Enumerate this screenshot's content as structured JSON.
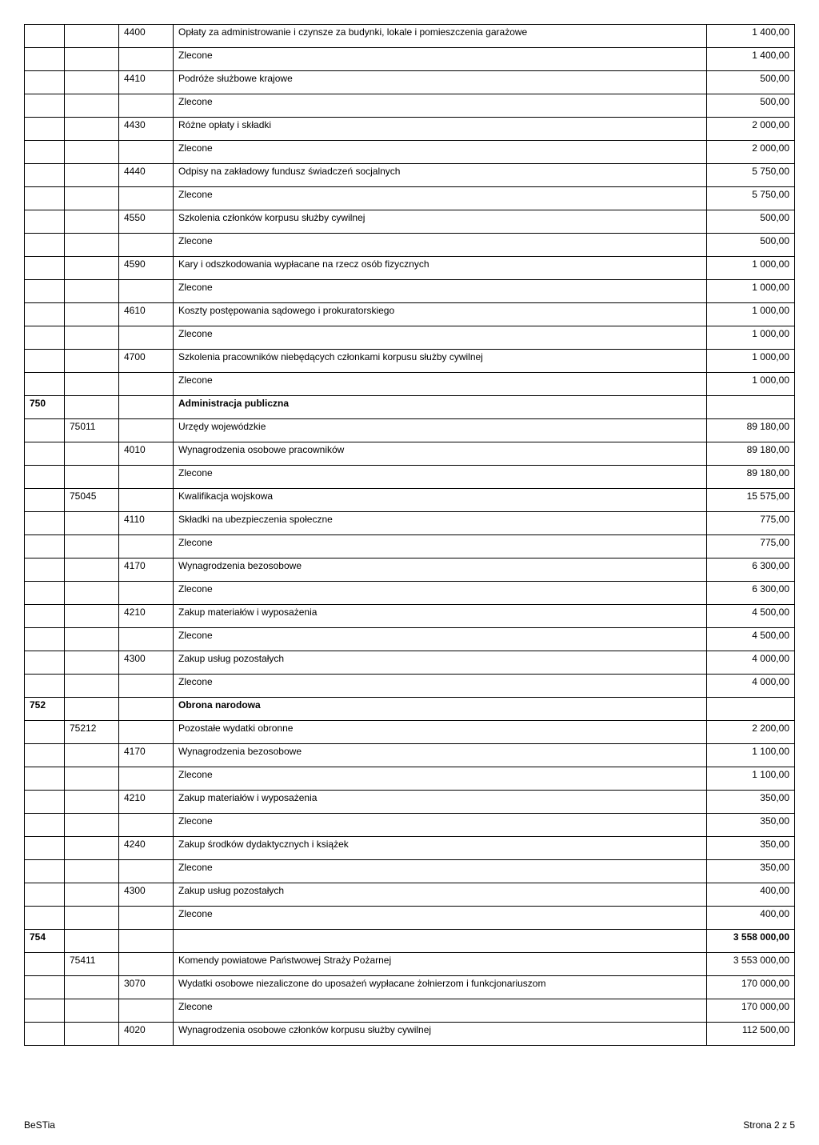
{
  "footer": {
    "left": "BeSTia",
    "right": "Strona 2 z 5"
  },
  "rows": [
    {
      "c2": "4400",
      "c3": "Opłaty za administrowanie i czynsze za budynki, lokale i pomieszczenia garażowe",
      "c4": "1 400,00"
    },
    {
      "c3": "Zlecone",
      "c4": "1 400,00"
    },
    {
      "c2": "4410",
      "c3": "Podróże służbowe krajowe",
      "c4": "500,00"
    },
    {
      "c3": "Zlecone",
      "c4": "500,00"
    },
    {
      "c2": "4430",
      "c3": "Różne opłaty i składki",
      "c4": "2 000,00"
    },
    {
      "c3": "Zlecone",
      "c4": "2 000,00"
    },
    {
      "c2": "4440",
      "c3": "Odpisy na zakładowy fundusz świadczeń socjalnych",
      "c4": "5 750,00"
    },
    {
      "c3": "Zlecone",
      "c4": "5 750,00"
    },
    {
      "c2": "4550",
      "c3": "Szkolenia członków korpusu służby cywilnej",
      "c4": "500,00"
    },
    {
      "c3": "Zlecone",
      "c4": "500,00"
    },
    {
      "c2": "4590",
      "c3": "Kary i odszkodowania wypłacane na rzecz osób fizycznych",
      "c4": "1 000,00"
    },
    {
      "c3": "Zlecone",
      "c4": "1 000,00"
    },
    {
      "c2": "4610",
      "c3": "Koszty postępowania sądowego i prokuratorskiego",
      "c4": "1 000,00"
    },
    {
      "c3": "Zlecone",
      "c4": "1 000,00"
    },
    {
      "c2": "4700",
      "c3": "Szkolenia pracowników niebędących członkami korpusu służby cywilnej",
      "c4": "1 000,00"
    },
    {
      "c3": "Zlecone",
      "c4": "1 000,00"
    },
    {
      "c0": "750",
      "c3": "Administracja publiczna",
      "bold": true
    },
    {
      "c1": "75011",
      "c3": "Urzędy wojewódzkie",
      "c4": "89 180,00"
    },
    {
      "c2": "4010",
      "c3": "Wynagrodzenia osobowe pracowników",
      "c4": "89 180,00"
    },
    {
      "c3": "Zlecone",
      "c4": "89 180,00"
    },
    {
      "c1": "75045",
      "c3": "Kwalifikacja wojskowa",
      "c4": "15 575,00"
    },
    {
      "c2": "4110",
      "c3": "Składki na ubezpieczenia społeczne",
      "c4": "775,00"
    },
    {
      "c3": "Zlecone",
      "c4": "775,00"
    },
    {
      "c2": "4170",
      "c3": "Wynagrodzenia bezosobowe",
      "c4": "6 300,00"
    },
    {
      "c3": "Zlecone",
      "c4": "6 300,00"
    },
    {
      "c2": "4210",
      "c3": "Zakup materiałów i wyposażenia",
      "c4": "4 500,00"
    },
    {
      "c3": "Zlecone",
      "c4": "4 500,00"
    },
    {
      "c2": "4300",
      "c3": "Zakup usług pozostałych",
      "c4": "4 000,00"
    },
    {
      "c3": "Zlecone",
      "c4": "4 000,00"
    },
    {
      "c0": "752",
      "c3": "Obrona narodowa",
      "bold": true
    },
    {
      "c1": "75212",
      "c3": "Pozostałe wydatki obronne",
      "c4": "2 200,00"
    },
    {
      "c2": "4170",
      "c3": "Wynagrodzenia bezosobowe",
      "c4": "1 100,00"
    },
    {
      "c3": "Zlecone",
      "c4": "1 100,00"
    },
    {
      "c2": "4210",
      "c3": "Zakup materiałów i wyposażenia",
      "c4": "350,00"
    },
    {
      "c3": "Zlecone",
      "c4": "350,00"
    },
    {
      "c2": "4240",
      "c3": "Zakup środków dydaktycznych i książek",
      "c4": "350,00"
    },
    {
      "c3": "Zlecone",
      "c4": "350,00"
    },
    {
      "c2": "4300",
      "c3": "Zakup usług pozostałych",
      "c4": "400,00"
    },
    {
      "c3": "Zlecone",
      "c4": "400,00"
    },
    {
      "c0": "754",
      "c4": "3 558 000,00",
      "bold": true
    },
    {
      "c1": "75411",
      "c3": "Komendy powiatowe Państwowej Straży Pożarnej",
      "c4": "3 553 000,00"
    },
    {
      "c2": "3070",
      "c3": "Wydatki osobowe niezaliczone do uposażeń wypłacane żołnierzom i funkcjonariuszom",
      "c4": "170 000,00"
    },
    {
      "c3": "Zlecone",
      "c4": "170 000,00"
    },
    {
      "c2": "4020",
      "c3": "Wynagrodzenia osobowe członków korpusu służby cywilnej",
      "c4": "112 500,00"
    }
  ]
}
